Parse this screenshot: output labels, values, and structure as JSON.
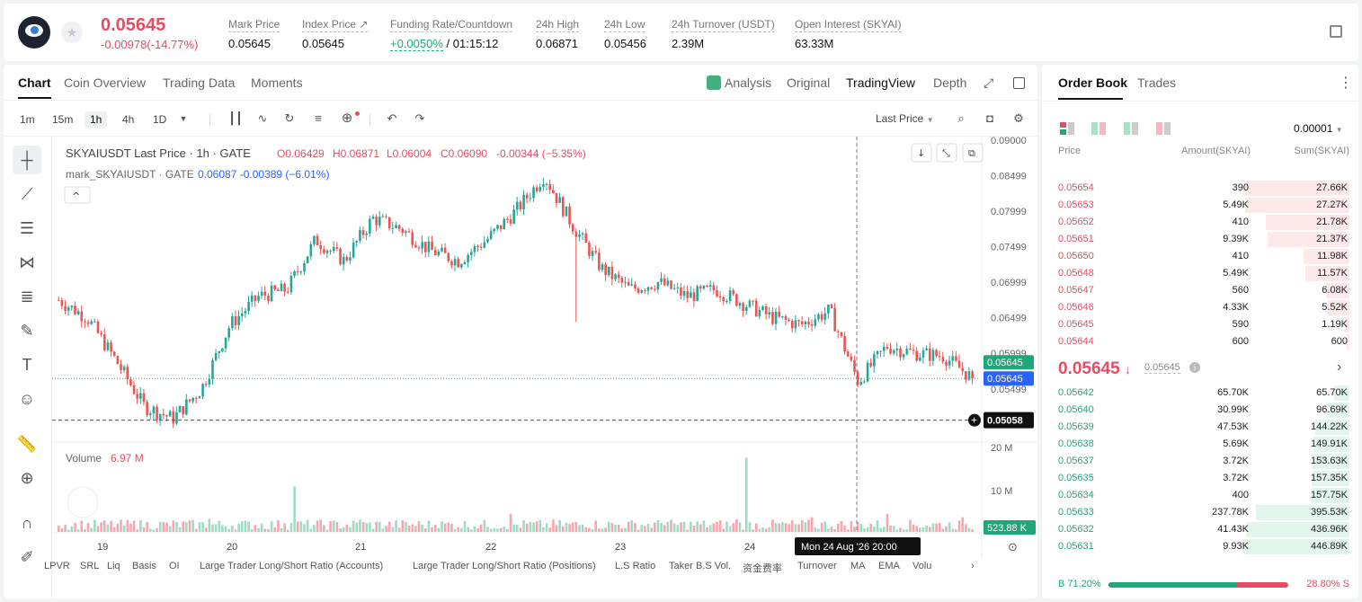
{
  "header": {
    "last_price": "0.05645",
    "change": "-0.00978(-14.77%)",
    "stats": [
      {
        "label": "Mark Price",
        "value": "0.05645"
      },
      {
        "label": "Index Price ↗",
        "value": "0.05645"
      },
      {
        "label": "Funding Rate/Countdown",
        "value": "+0.0050%",
        "value2": "/ 01:15:12"
      },
      {
        "label": "24h High",
        "value": "0.06871"
      },
      {
        "label": "24h Low",
        "value": "0.05456"
      },
      {
        "label": "24h Turnover (USDT)",
        "value": "2.39M"
      },
      {
        "label": "Open Interest (SKYAI)",
        "value": "63.33M"
      }
    ]
  },
  "chart_tabs": [
    "Chart",
    "Coin Overview",
    "Trading Data",
    "Moments"
  ],
  "view_tabs": [
    "Analysis",
    "Original",
    "TradingView",
    "Depth"
  ],
  "timeframes": [
    "1m",
    "15m",
    "1h",
    "4h",
    "1D"
  ],
  "active_timeframe": "1h",
  "price_source": "Last Price",
  "legend": {
    "title": "SKYAIUSDT Last Price · 1h · GATE",
    "o": "O0.06429",
    "h": "H0.06871",
    "l": "L0.06004",
    "c": "C0.06090",
    "chg": "-0.00344 (−5.35%)",
    "mark_title": "mark_SKYAIUSDT · GATE",
    "mark_vals": "0.06087 -0.00389 (−6.01%)"
  },
  "volume": {
    "label": "Volume",
    "value": "6.97 M",
    "axis": [
      "20 M",
      "10 M"
    ],
    "current": "523.88 K"
  },
  "price_axis": [
    "0.09000",
    "0.08499",
    "0.07999",
    "0.07499",
    "0.06999",
    "0.06499",
    "0.05999",
    "0.05499"
  ],
  "price_tags": {
    "last": "0.05645",
    "mark": "0.05645",
    "cross": "0.05058"
  },
  "time_axis": [
    "19",
    "20",
    "21",
    "22",
    "23",
    "24"
  ],
  "crosshair_time": "Mon 24 Aug '26   20:00",
  "indicators": [
    "LPVR",
    "SRL",
    "Liq",
    "Basis",
    "OI",
    "Large Trader Long/Short Ratio (Accounts)",
    "Large Trader Long/Short Ratio (Positions)",
    "L.S Ratio",
    "Taker B.S Vol.",
    "资金费率",
    "Turnover",
    "MA",
    "EMA",
    "Volu"
  ],
  "colors": {
    "up": "#26a69a",
    "down": "#ef5350",
    "ask": "#e54d63",
    "bid": "#21a87a"
  },
  "orderbook": {
    "tabs": [
      "Order Book",
      "Trades"
    ],
    "precision": "0.00001",
    "columns": [
      "Price",
      "Amount(SKYAI)",
      "Sum(SKYAI)"
    ],
    "asks": [
      {
        "price": "0.05654",
        "amount": "390",
        "sum": "27.66K",
        "depth": 1.0
      },
      {
        "price": "0.05653",
        "amount": "5.49K",
        "sum": "27.27K",
        "depth": 0.986
      },
      {
        "price": "0.05652",
        "amount": "410",
        "sum": "21.78K",
        "depth": 0.787
      },
      {
        "price": "0.05651",
        "amount": "9.39K",
        "sum": "21.37K",
        "depth": 0.773
      },
      {
        "price": "0.05650",
        "amount": "410",
        "sum": "11.98K",
        "depth": 0.433
      },
      {
        "price": "0.05648",
        "amount": "5.49K",
        "sum": "11.57K",
        "depth": 0.418
      },
      {
        "price": "0.05647",
        "amount": "560",
        "sum": "6.08K",
        "depth": 0.22
      },
      {
        "price": "0.05646",
        "amount": "4.33K",
        "sum": "5.52K",
        "depth": 0.2
      },
      {
        "price": "0.05645",
        "amount": "590",
        "sum": "1.19K",
        "depth": 0.043
      },
      {
        "price": "0.05644",
        "amount": "600",
        "sum": "600",
        "depth": 0.022
      }
    ],
    "mid_price": "0.05645",
    "mid_mark": "0.05645",
    "bids": [
      {
        "price": "0.05642",
        "amount": "65.70K",
        "sum": "65.70K",
        "depth": 0.147
      },
      {
        "price": "0.05640",
        "amount": "30.99K",
        "sum": "96.69K",
        "depth": 0.216
      },
      {
        "price": "0.05639",
        "amount": "47.53K",
        "sum": "144.22K",
        "depth": 0.323
      },
      {
        "price": "0.05638",
        "amount": "5.69K",
        "sum": "149.91K",
        "depth": 0.335
      },
      {
        "price": "0.05637",
        "amount": "3.72K",
        "sum": "153.63K",
        "depth": 0.344
      },
      {
        "price": "0.05635",
        "amount": "3.72K",
        "sum": "157.35K",
        "depth": 0.352
      },
      {
        "price": "0.05634",
        "amount": "400",
        "sum": "157.75K",
        "depth": 0.353
      },
      {
        "price": "0.05633",
        "amount": "237.78K",
        "sum": "395.53K",
        "depth": 0.885
      },
      {
        "price": "0.05632",
        "amount": "41.43K",
        "sum": "436.96K",
        "depth": 0.978
      },
      {
        "price": "0.05631",
        "amount": "9.93K",
        "sum": "446.89K",
        "depth": 1.0
      }
    ],
    "buy_ratio": "B 71.20%",
    "sell_ratio": "28.80% S",
    "buy_fraction": 0.712
  },
  "chart_data": {
    "type": "candlestick",
    "ylim": [
      0.0475,
      0.0905
    ],
    "x": [
      "19",
      "20",
      "21",
      "22",
      "23",
      "24"
    ],
    "close_path": [
      0.0675,
      0.065,
      0.059,
      0.0525,
      0.0508,
      0.055,
      0.064,
      0.068,
      0.069,
      0.076,
      0.073,
      0.079,
      0.0775,
      0.0745,
      0.073,
      0.076,
      0.08,
      0.085,
      0.078,
      0.072,
      0.069,
      0.07,
      0.068,
      0.069,
      0.067,
      0.065,
      0.064,
      0.066,
      0.056,
      0.061,
      0.06,
      0.0596,
      0.0565
    ],
    "last": 0.05645
  }
}
